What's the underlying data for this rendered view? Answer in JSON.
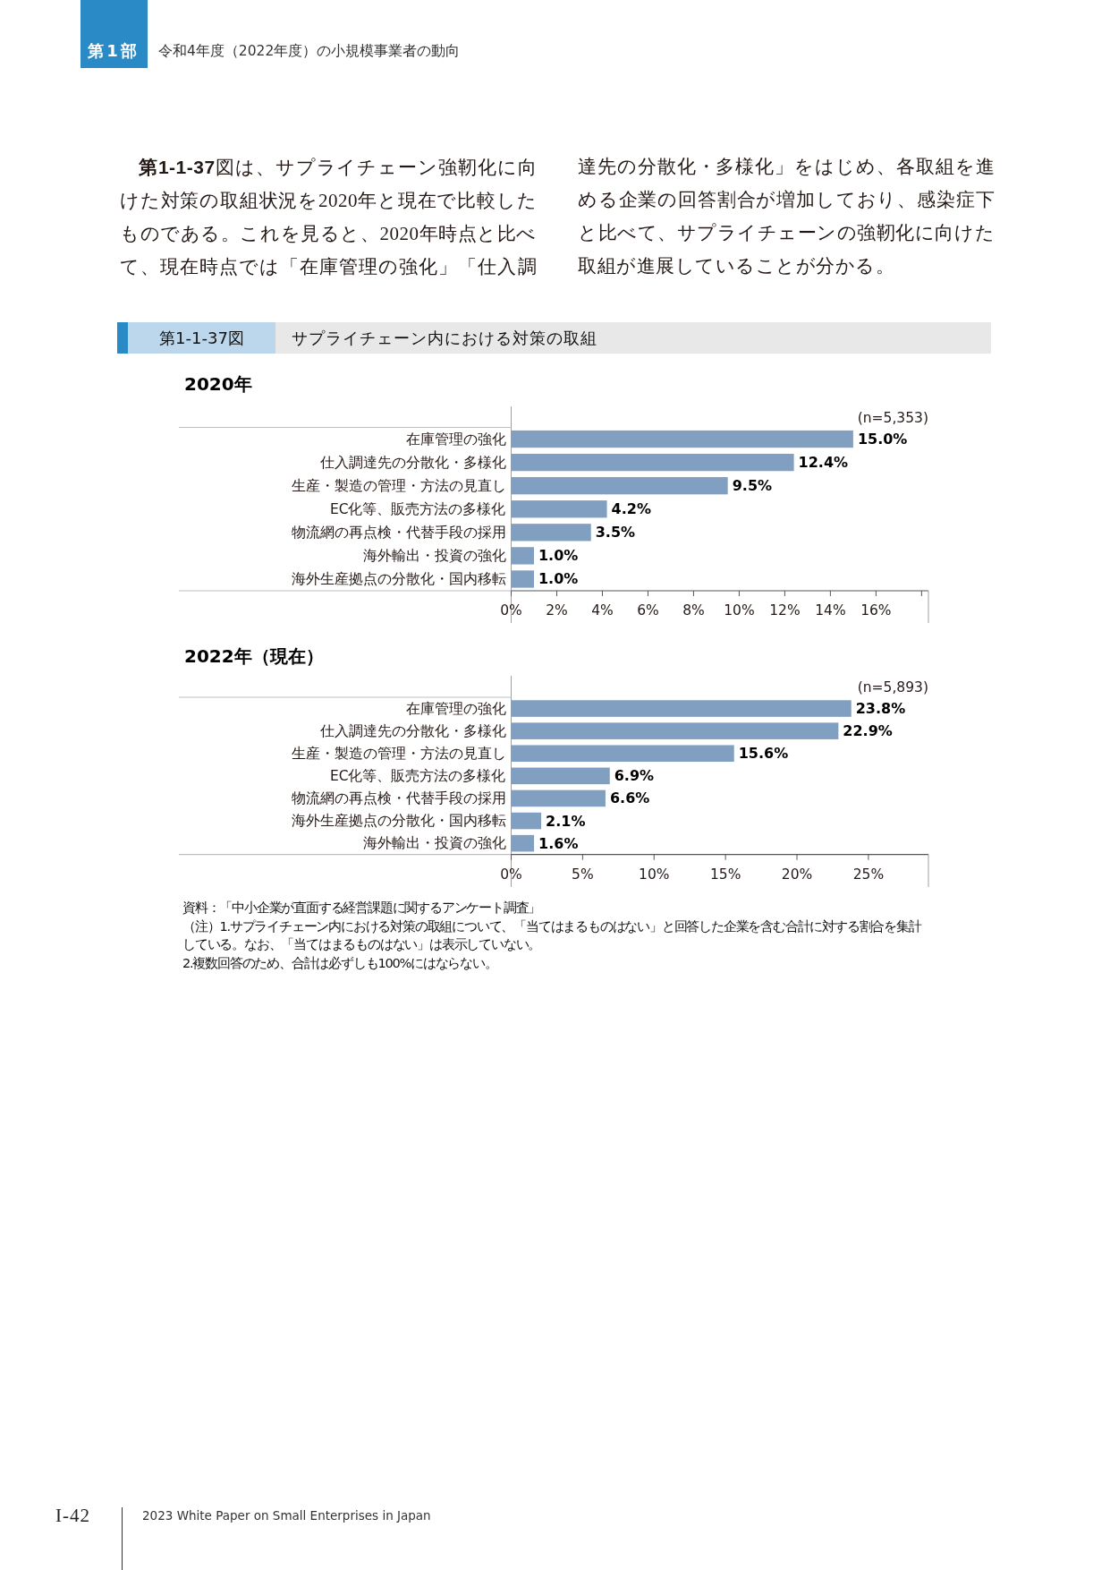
{
  "chart_data": [
    {
      "type": "bar",
      "orientation": "horizontal",
      "title": "サプライチェーン内における対策の取組",
      "subtitle": "2020年",
      "categories": [
        "在庫管理の強化",
        "仕入調達先の分散化・多様化",
        "生産・製造の管理・方法の見直し",
        "EC化等、販売方法の多様化",
        "物流網の再点検・代替手段の採用",
        "海外輸出・投資の強化",
        "海外生産拠点の分散化・国内移転"
      ],
      "values": [
        15.0,
        12.4,
        9.5,
        4.2,
        3.5,
        1.0,
        1.0
      ],
      "color": "#819fc1",
      "value_labels": [
        "15.0%",
        "12.4%",
        "9.5%",
        "4.2%",
        "3.5%",
        "1.0%",
        "1.0%"
      ],
      "xlim": [
        0,
        18.3
      ],
      "xticks": [
        {
          "value": 0,
          "label": "0%"
        },
        {
          "value": 2,
          "label": "2%"
        },
        {
          "value": 4,
          "label": "4%"
        },
        {
          "value": 6,
          "label": "6%"
        },
        {
          "value": 8,
          "label": "8%"
        },
        {
          "value": 10,
          "label": "10%"
        },
        {
          "value": 12,
          "label": "12%"
        },
        {
          "value": 14,
          "label": "14%"
        },
        {
          "value": 16,
          "label": "16%"
        },
        {
          "value": 18,
          "label": null
        }
      ],
      "annotations": [
        "第1部",
        "令和4年度（2022年度）の小規模事業者の動向",
        "**第1-1-37**図は、サプライチェーン強靭化に向けた対策の取組状況を2020年と現在で比較したものである。これを見ると、2020年時点と比べて、現在時点では「在庫管理の強化」「仕入調達先の分散化・多様化」をはじめ、各取組を進める企業の回答割合が増加しており、感染症下と比べて、サプライチェーンの強靭化に向けた取組が進展していることが分かる。",
        "第1-1-37図",
        "(n=5,353)"
      ]
    },
    {
      "type": "bar",
      "orientation": "horizontal",
      "subtitle": "2022年（現在）",
      "categories": [
        "在庫管理の強化",
        "仕入調達先の分散化・多様化",
        "生産・製造の管理・方法の見直し",
        "EC化等、販売方法の多様化",
        "物流網の再点検・代替手段の採用",
        "海外生産拠点の分散化・国内移転",
        "海外輸出・投資の強化"
      ],
      "values": [
        23.8,
        22.9,
        15.6,
        6.9,
        6.6,
        2.1,
        1.6
      ],
      "color": "#819fc1",
      "value_labels": [
        "23.8%",
        "22.9%",
        "15.6%",
        "6.9%",
        "6.6%",
        "2.1%",
        "1.6%"
      ],
      "xlim": [
        0,
        29.2
      ],
      "xticks": [
        {
          "value": 0,
          "label": "0%"
        },
        {
          "value": 5,
          "label": "5%"
        },
        {
          "value": 10,
          "label": "10%"
        },
        {
          "value": 15,
          "label": "15%"
        },
        {
          "value": 20,
          "label": "20%"
        },
        {
          "value": 25,
          "label": "25%"
        }
      ],
      "annotations": [
        "(n=5,893)",
        "資料：「中小企業が直面する経営課題に関するアンケート調査」",
        "（注）1.サプライチェーン内における対策の取組について、「当てはまるものはない」と回答した企業を含む合計に対する割合を集計している。なお、「当てはまるものはない」は表示していない。",
        "2.複数回答のため、合計は必ずしも100%にはならない。",
        "I-42",
        "2023 White Paper on Small Enterprises in Japan"
      ]
    }
  ]
}
